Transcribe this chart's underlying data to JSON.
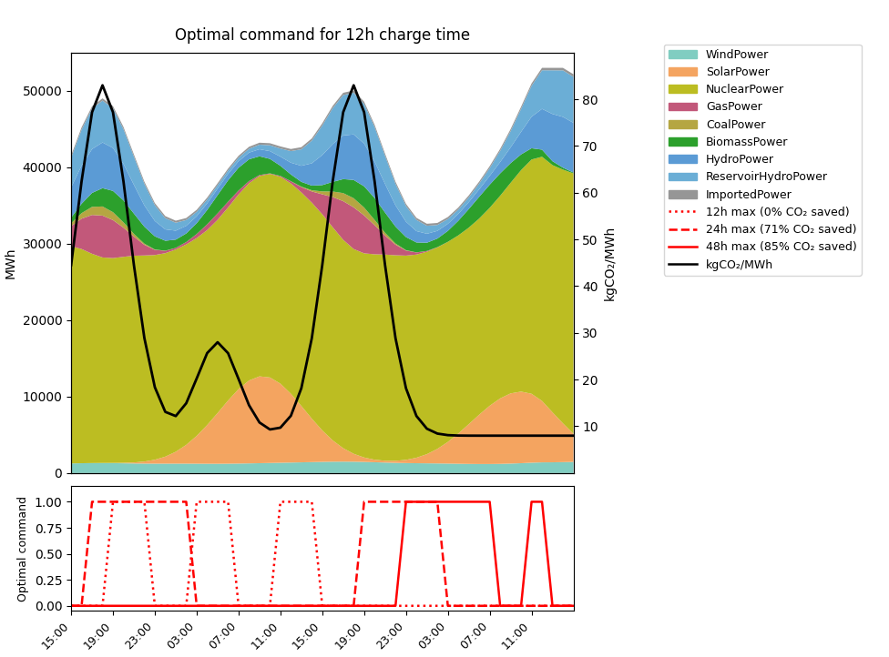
{
  "title": "Optimal command for 12h charge time",
  "ylabel_top": "MWh",
  "ylabel_right": "kgCO₂/MWh",
  "ylabel_bottom": "Optimal command",
  "time_labels": [
    "15:00",
    "19:00",
    "23:00",
    "03:00",
    "07:00",
    "11:00",
    "15:00",
    "19:00",
    "23:00",
    "03:00",
    "07:00",
    "11:00"
  ],
  "time_ticks": [
    0,
    4,
    8,
    12,
    16,
    20,
    24,
    28,
    32,
    36,
    40,
    44
  ],
  "stack_labels": [
    "WindPower",
    "SolarPower",
    "NuclearPower",
    "GasPower",
    "CoalPower",
    "BiomassPower",
    "HydroPower",
    "ReservoirHydroPower",
    "ImportedPower"
  ],
  "stack_colors": [
    "#80cdc1",
    "#f4a460",
    "#bcbd22",
    "#c2587a",
    "#b5a642",
    "#2ca02c",
    "#5b9bd5",
    "#6baed6",
    "#969696"
  ],
  "legend_items_lines": [
    {
      "label": "12h max (0% CO₂ saved)",
      "color": "red",
      "ls": "dotted",
      "lw": 1.8
    },
    {
      "label": "24h max (71% CO₂ saved)",
      "color": "red",
      "ls": "dashed",
      "lw": 1.8
    },
    {
      "label": "48h max (85% CO₂ saved)",
      "color": "red",
      "ls": "solid",
      "lw": 1.8
    },
    {
      "label": "kgCO₂/MWh",
      "color": "black",
      "ls": "solid",
      "lw": 1.8
    }
  ]
}
